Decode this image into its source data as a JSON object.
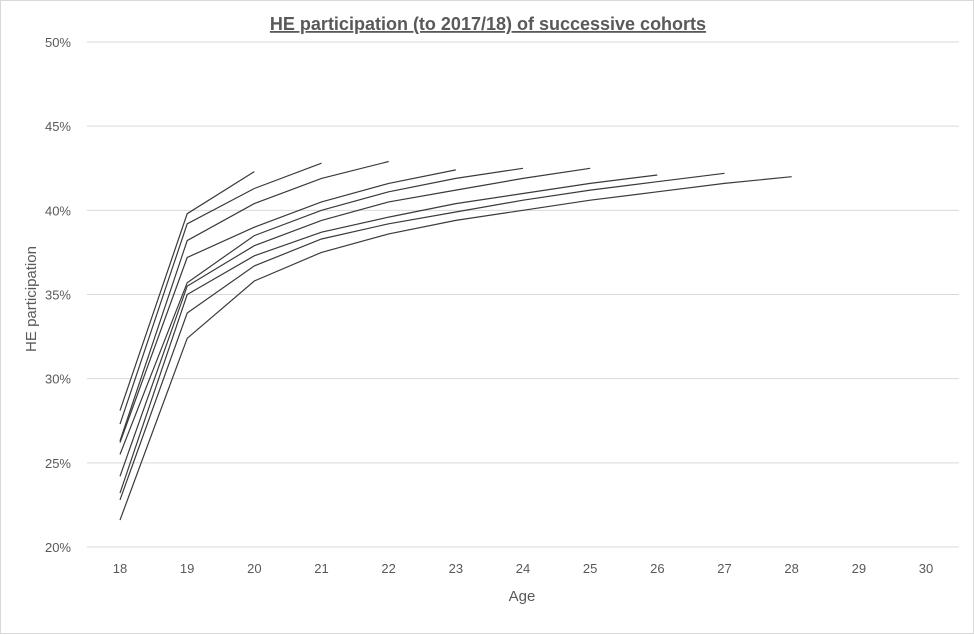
{
  "chart_data": {
    "type": "line",
    "title": "HE participation (to 2017/18) of successive cohorts",
    "xlabel": "Age",
    "ylabel": "HE participation",
    "x_ticks": [
      "18",
      "19",
      "20",
      "21",
      "22",
      "23",
      "24",
      "25",
      "26",
      "27",
      "28",
      "29",
      "30"
    ],
    "y_ticks": [
      "20%",
      "25%",
      "30%",
      "35%",
      "40%",
      "45%",
      "50%"
    ],
    "xlim": [
      18,
      30
    ],
    "ylim": [
      20,
      50
    ],
    "grid": true,
    "legend": "none",
    "line_color": "#3a3a3a",
    "series": [
      {
        "x": [
          18,
          19,
          20
        ],
        "values": [
          28.1,
          39.8,
          42.3
        ]
      },
      {
        "x": [
          18,
          19,
          20,
          21
        ],
        "values": [
          27.3,
          39.2,
          41.3,
          42.8
        ]
      },
      {
        "x": [
          18,
          19,
          20,
          21,
          22
        ],
        "values": [
          26.3,
          38.2,
          40.4,
          41.9,
          42.9
        ]
      },
      {
        "x": [
          18,
          19,
          20,
          21,
          22,
          23
        ],
        "values": [
          26.2,
          37.2,
          39.0,
          40.5,
          41.6,
          42.4
        ]
      },
      {
        "x": [
          18,
          19,
          20,
          21,
          22,
          23,
          24
        ],
        "values": [
          25.5,
          35.7,
          38.5,
          40.0,
          41.1,
          41.9,
          42.5
        ]
      },
      {
        "x": [
          18,
          19,
          20,
          21,
          22,
          23,
          24,
          25
        ],
        "values": [
          24.2,
          35.5,
          37.9,
          39.4,
          40.5,
          41.2,
          41.9,
          42.5
        ]
      },
      {
        "x": [
          18,
          19,
          20,
          21,
          22,
          23,
          24,
          25,
          26
        ],
        "values": [
          23.2,
          35.0,
          37.3,
          38.7,
          39.6,
          40.4,
          41.0,
          41.6,
          42.1
        ]
      },
      {
        "x": [
          18,
          19,
          20,
          21,
          22,
          23,
          24,
          25,
          26,
          27
        ],
        "values": [
          22.8,
          33.9,
          36.7,
          38.3,
          39.2,
          39.9,
          40.6,
          41.2,
          41.7,
          42.2
        ]
      },
      {
        "x": [
          18,
          19,
          20,
          21,
          22,
          23,
          24,
          25,
          26,
          27,
          28
        ],
        "values": [
          21.6,
          32.4,
          35.8,
          37.5,
          38.6,
          39.4,
          40.0,
          40.6,
          41.1,
          41.6,
          42.0
        ]
      }
    ]
  }
}
